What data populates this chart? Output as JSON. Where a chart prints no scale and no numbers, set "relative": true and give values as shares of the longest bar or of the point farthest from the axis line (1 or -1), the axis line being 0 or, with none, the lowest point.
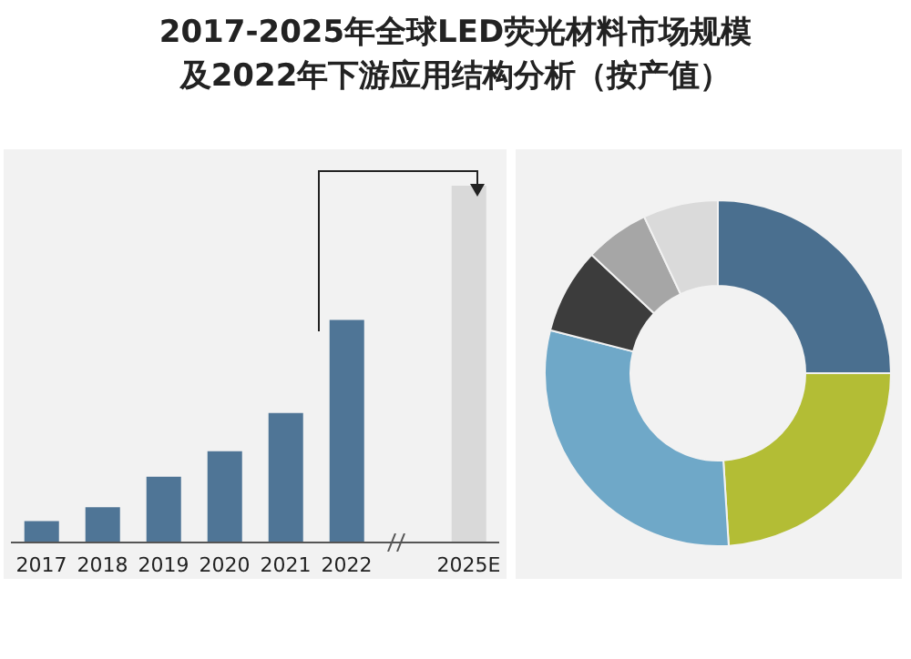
{
  "chart_data": [
    {
      "type": "bar",
      "title": "2017-2025年全球LED荧光材料市场规模及2022年下游应用结构分析（按产值）",
      "relative": true,
      "categories": [
        "2017",
        "2018",
        "2019",
        "2020",
        "2021",
        "2022",
        null,
        "2025E"
      ],
      "values": [
        0.06,
        0.099,
        0.184,
        0.256,
        0.363,
        0.624,
        null,
        1
      ],
      "colors": [
        "#4f7596",
        "#4f7596",
        "#4f7596",
        "#4f7596",
        "#4f7596",
        "#4f7596",
        "#4f7596",
        "#d9d9d9"
      ]
    },
    {
      "type": "donut",
      "categories": [
        null,
        null,
        null,
        null,
        null,
        null
      ],
      "values": [
        25,
        24,
        30,
        8,
        6,
        7
      ],
      "colors": [
        "#4a6f8f",
        "#b3bd35",
        "#6fa8c8",
        "#3c3c3c",
        "#a6a6a6",
        "#dadada"
      ]
    }
  ]
}
